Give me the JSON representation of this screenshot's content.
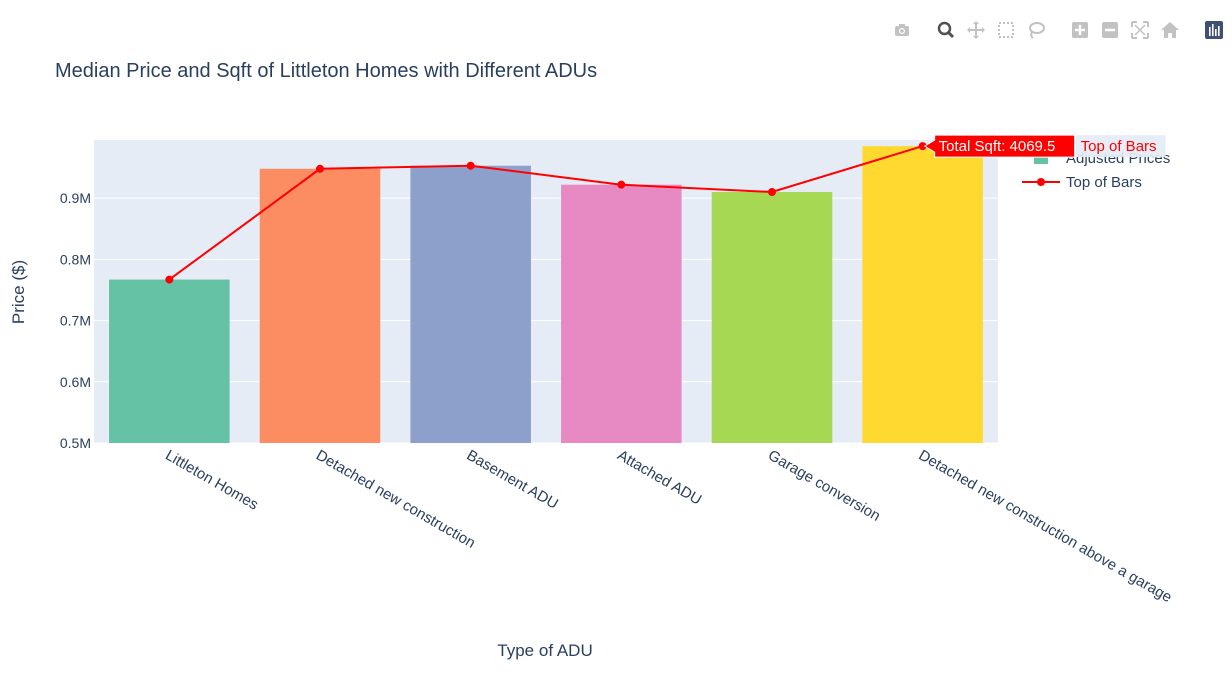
{
  "toolbar": {
    "buttons": [
      {
        "name": "camera-icon",
        "title": "Download plot as a png"
      },
      {
        "name": "zoom-icon",
        "title": "Zoom"
      },
      {
        "name": "pan-icon",
        "title": "Pan"
      },
      {
        "name": "box-select-icon",
        "title": "Box Select"
      },
      {
        "name": "lasso-select-icon",
        "title": "Lasso Select"
      },
      {
        "name": "zoom-in-icon",
        "title": "Zoom in"
      },
      {
        "name": "zoom-out-icon",
        "title": "Zoom out"
      },
      {
        "name": "autoscale-icon",
        "title": "Autoscale"
      },
      {
        "name": "reset-axes-icon",
        "title": "Reset axes"
      },
      {
        "name": "plotly-logo-icon",
        "title": "Produced with Plotly"
      }
    ]
  },
  "chart_data": {
    "type": "bar",
    "title": "Median Price and Sqft of Littleton Homes with Different ADUs",
    "xlabel": "Type of ADU",
    "ylabel": "Price ($)",
    "ylim": [
      500000,
      995000
    ],
    "yticks": [
      {
        "value": 500000,
        "label": "0.5M"
      },
      {
        "value": 600000,
        "label": "0.6M"
      },
      {
        "value": 700000,
        "label": "0.7M"
      },
      {
        "value": 800000,
        "label": "0.8M"
      },
      {
        "value": 900000,
        "label": "0.9M"
      }
    ],
    "categories": [
      "Littleton Homes",
      "Detached new construction",
      "Basement ADU",
      "Attached ADU",
      "Garage conversion",
      "Detached new construction above a garage"
    ],
    "series": [
      {
        "name": "Adjusted Prices",
        "kind": "bar",
        "values": [
          767000,
          948000,
          953000,
          922000,
          910000,
          985000
        ],
        "colors": [
          "#66c2a5",
          "#fc8d62",
          "#8da0cb",
          "#e78ac3",
          "#a6d854",
          "#ffd92f"
        ]
      },
      {
        "name": "Top of Bars",
        "kind": "line+markers",
        "color": "#ff0000",
        "values": [
          767000,
          948000,
          953000,
          922000,
          910000,
          985000
        ]
      }
    ],
    "hover": {
      "category_index": 5,
      "text": "Total Sqft: 4069.5",
      "series_name": "Top of Bars"
    },
    "legend_position": "top-right",
    "grid": true,
    "plot_bg": "#e5ecf6"
  }
}
